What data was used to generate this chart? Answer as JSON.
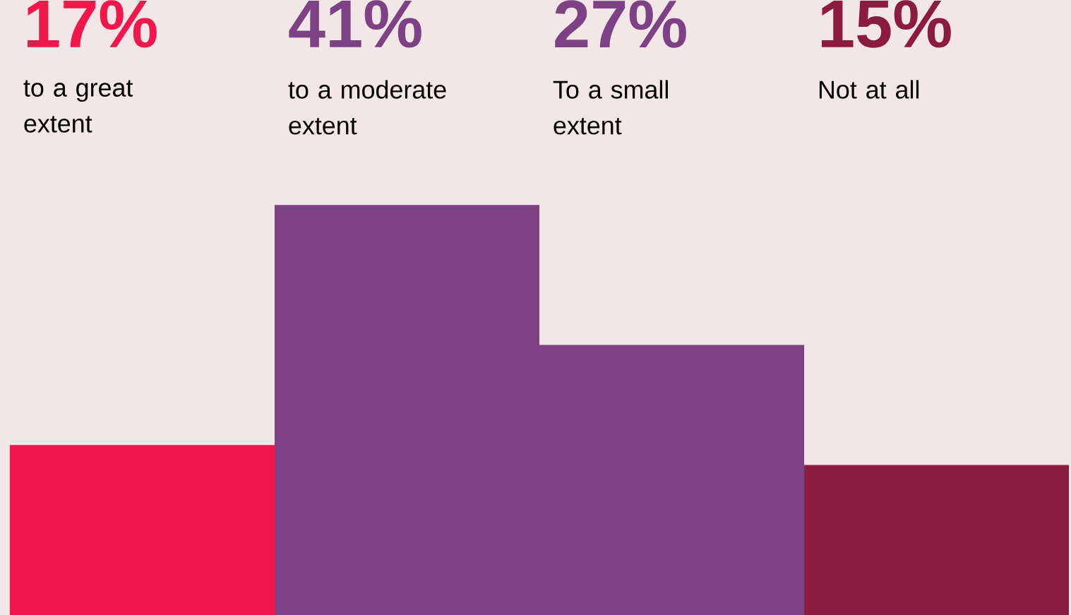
{
  "chart_data": {
    "type": "bar",
    "categories": [
      "to a great extent",
      "to a moderate extent",
      "To a small extent",
      "Not at all"
    ],
    "values": [
      17,
      41,
      27,
      15
    ],
    "colors": [
      "#f0184a",
      "#7c4283",
      "#7c4283",
      "#8a1c42"
    ],
    "value_labels": [
      "17%",
      "41%",
      "27%",
      "15%"
    ]
  }
}
